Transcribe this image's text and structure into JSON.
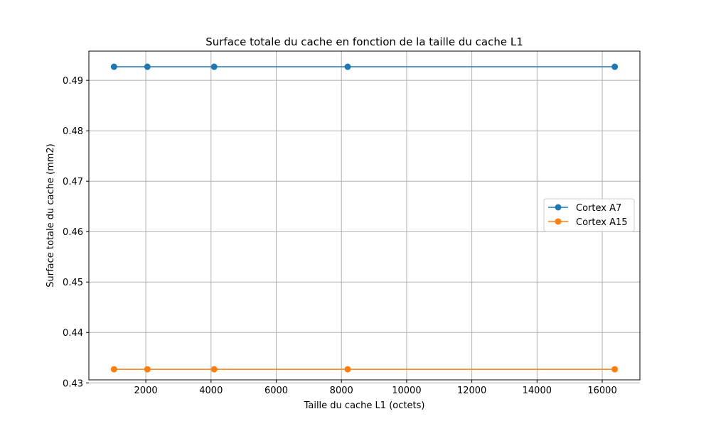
{
  "chart_data": {
    "type": "line",
    "title": "Surface totale du cache en fonction de la taille du cache L1",
    "xlabel": "Taille du cache L1 (octets)",
    "ylabel": "Surface totale du cache (mm2)",
    "x": [
      1024,
      2048,
      4096,
      8192,
      16384
    ],
    "xlim": [
      253,
      17155
    ],
    "ylim": [
      0.4306,
      0.4958
    ],
    "xticks": [
      2000,
      4000,
      6000,
      8000,
      10000,
      12000,
      14000,
      16000
    ],
    "yticks": [
      0.43,
      0.44,
      0.45,
      0.46,
      0.47,
      0.48,
      0.49
    ],
    "grid": true,
    "legend_position": "center-right",
    "series": [
      {
        "name": "Cortex A7",
        "color": "#1f77b4",
        "marker": "circle",
        "values": [
          0.4927,
          0.4927,
          0.4927,
          0.4927,
          0.4927
        ]
      },
      {
        "name": "Cortex A15",
        "color": "#ff7f0e",
        "marker": "circle",
        "values": [
          0.4327,
          0.4327,
          0.4327,
          0.4327,
          0.4327
        ]
      }
    ]
  }
}
